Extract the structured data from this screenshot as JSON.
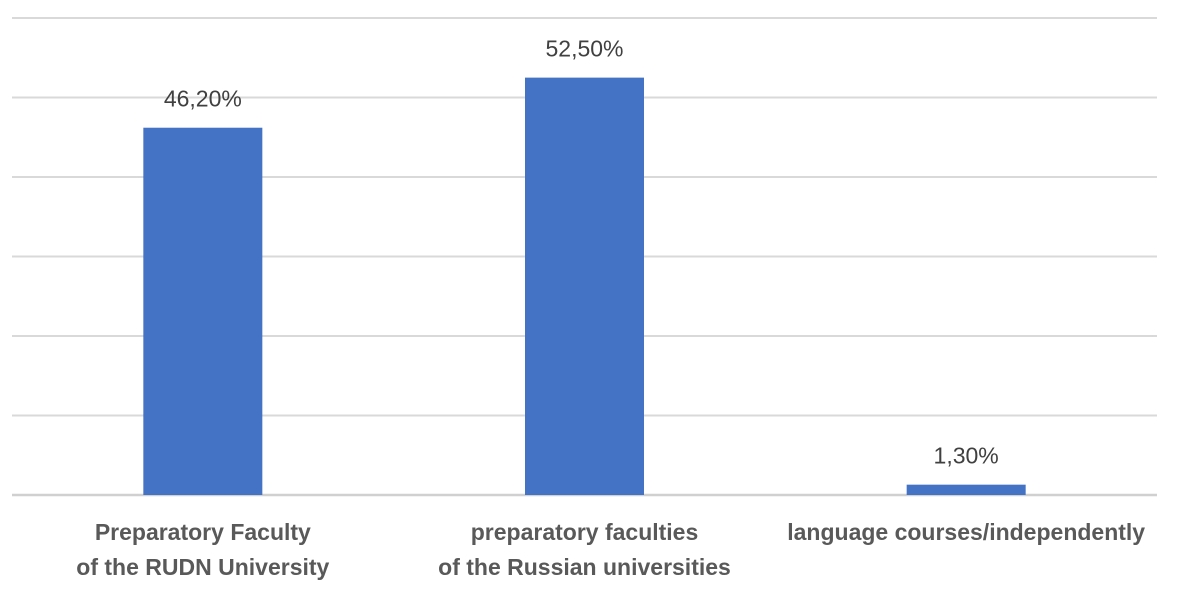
{
  "chart_data": {
    "type": "bar",
    "categories": [
      [
        "Preparatory Faculty",
        "of the RUDN University"
      ],
      [
        "preparatory faculties",
        "of the Russian universities"
      ],
      [
        "language courses/independently"
      ]
    ],
    "values": [
      46.2,
      52.5,
      1.3
    ],
    "data_labels": [
      "46,20%",
      "52,50%",
      "1,30%"
    ],
    "ylim": [
      0,
      60
    ],
    "grid": true,
    "legend": "none",
    "bar_color": "#4472C4"
  }
}
